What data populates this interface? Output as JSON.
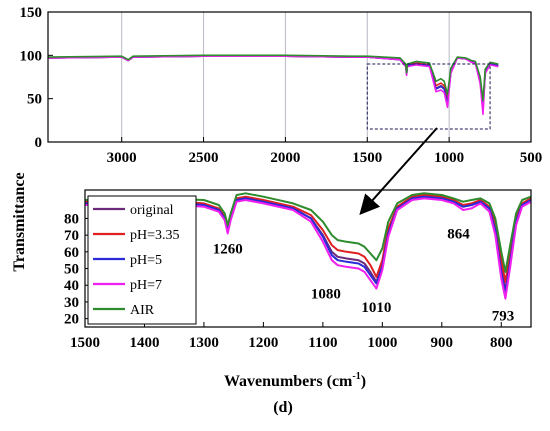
{
  "colors": {
    "original": "#6b2a7a",
    "ph335": "#e02020",
    "ph5": "#2a2ad8",
    "ph7": "#f01ff0",
    "air": "#2e8b2e",
    "zoom_box": "#1a1a55"
  },
  "shared_ylabel": "Transmittance",
  "panel_label": "(d)",
  "chart_data": [
    {
      "type": "line",
      "name_role": "full-spectrum",
      "xlim": [
        3450,
        500
      ],
      "ylim": [
        0,
        150
      ],
      "x_ticks": [
        3000,
        2500,
        2000,
        1500,
        1000,
        500
      ],
      "x_tick_labels": [
        "3000",
        "2500",
        "2000",
        "1500",
        "1000",
        "500"
      ],
      "y_ticks": [
        0,
        50,
        100,
        150
      ],
      "y_tick_labels": [
        "0",
        "50",
        "100",
        "150"
      ],
      "grid": "vertical",
      "zoom_box": {
        "x": [
          1500,
          750
        ],
        "y": [
          15,
          90
        ]
      },
      "series": [
        {
          "name": "original",
          "x": [
            3450,
            3000,
            2960,
            2930,
            2500,
            2000,
            1600,
            1500,
            1300,
            1265,
            1260,
            1255,
            1200,
            1120,
            1080,
            1050,
            1030,
            1010,
            990,
            950,
            900,
            864,
            840,
            810,
            793,
            780,
            750,
            700
          ],
          "y": [
            97,
            98,
            94,
            98,
            99,
            99,
            98,
            98,
            95,
            88,
            78,
            88,
            90,
            88,
            62,
            65,
            62,
            45,
            80,
            97,
            96,
            93,
            92,
            70,
            38,
            80,
            90,
            88
          ]
        },
        {
          "name": "pH=3.35",
          "x": [
            3450,
            3000,
            2960,
            2930,
            2500,
            2000,
            1600,
            1500,
            1300,
            1265,
            1260,
            1255,
            1200,
            1120,
            1080,
            1050,
            1030,
            1010,
            990,
            950,
            900,
            864,
            840,
            810,
            793,
            780,
            750,
            700
          ],
          "y": [
            97,
            98,
            94,
            98,
            99,
            99,
            98,
            98,
            96,
            89,
            79,
            89,
            91,
            89,
            65,
            68,
            65,
            48,
            82,
            97,
            96,
            93,
            92,
            72,
            42,
            82,
            91,
            89
          ]
        },
        {
          "name": "pH=5",
          "x": [
            3450,
            3000,
            2960,
            2930,
            2500,
            2000,
            1600,
            1500,
            1300,
            1265,
            1260,
            1255,
            1200,
            1120,
            1080,
            1050,
            1030,
            1010,
            990,
            950,
            900,
            864,
            840,
            810,
            793,
            780,
            750,
            700
          ],
          "y": [
            97,
            98,
            94,
            98,
            99,
            99,
            98,
            98,
            95,
            88,
            78,
            88,
            90,
            88,
            61,
            64,
            61,
            44,
            80,
            97,
            96,
            93,
            92,
            70,
            37,
            80,
            90,
            88
          ]
        },
        {
          "name": "pH=7",
          "x": [
            3450,
            3000,
            2960,
            2930,
            2500,
            2000,
            1600,
            1500,
            1300,
            1265,
            1260,
            1255,
            1200,
            1120,
            1080,
            1050,
            1030,
            1010,
            990,
            950,
            900,
            864,
            840,
            810,
            793,
            780,
            750,
            700
          ],
          "y": [
            97,
            98,
            94,
            98,
            99,
            99,
            98,
            98,
            95,
            87,
            77,
            87,
            89,
            87,
            58,
            60,
            57,
            40,
            79,
            97,
            96,
            92,
            91,
            67,
            32,
            79,
            89,
            87
          ]
        },
        {
          "name": "AIR",
          "x": [
            3450,
            3000,
            2960,
            2930,
            2500,
            2000,
            1600,
            1500,
            1300,
            1265,
            1260,
            1255,
            1200,
            1120,
            1080,
            1050,
            1030,
            1010,
            990,
            950,
            900,
            864,
            840,
            810,
            793,
            780,
            750,
            700
          ],
          "y": [
            98,
            99,
            95,
            99,
            100,
            100,
            99,
            99,
            97,
            90,
            80,
            90,
            93,
            91,
            70,
            73,
            70,
            55,
            85,
            98,
            97,
            94,
            93,
            75,
            48,
            84,
            92,
            90
          ]
        }
      ]
    },
    {
      "type": "line",
      "name_role": "zoomed-region",
      "xlabel": "Wavenumbers (cm",
      "xlabel_sup": "-1",
      "xlabel_close": ")",
      "xlim": [
        1500,
        750
      ],
      "ylim": [
        15,
        97
      ],
      "x_ticks": [
        1500,
        1400,
        1300,
        1200,
        1100,
        1000,
        900,
        800
      ],
      "x_tick_labels": [
        "1500",
        "1400",
        "1300",
        "1200",
        "1100",
        "1000",
        "900",
        "800"
      ],
      "y_ticks": [
        20,
        30,
        40,
        50,
        60,
        70,
        80
      ],
      "y_tick_labels": [
        "20",
        "30",
        "40",
        "50",
        "60",
        "70",
        "80"
      ],
      "legend_position": "top-left",
      "annotations": [
        {
          "text": "1260",
          "x": 1260,
          "y": 62
        },
        {
          "text": "1080",
          "x": 1095,
          "y": 35
        },
        {
          "text": "1010",
          "x": 1010,
          "y": 27
        },
        {
          "text": "864",
          "x": 872,
          "y": 71
        },
        {
          "text": "793",
          "x": 797,
          "y": 22
        }
      ],
      "series": [
        {
          "name": "original",
          "color_key": "original",
          "x": [
            1500,
            1400,
            1395,
            1390,
            1380,
            1300,
            1275,
            1265,
            1260,
            1255,
            1245,
            1230,
            1200,
            1150,
            1120,
            1100,
            1085,
            1075,
            1060,
            1040,
            1030,
            1020,
            1010,
            1000,
            990,
            975,
            950,
            930,
            900,
            880,
            864,
            850,
            835,
            820,
            810,
            800,
            793,
            785,
            775,
            765,
            750
          ],
          "y": [
            89,
            90,
            90,
            89,
            90,
            88,
            85,
            80,
            73,
            80,
            91,
            92,
            90,
            86,
            80,
            70,
            60,
            57,
            56,
            55,
            53,
            48,
            42,
            52,
            72,
            86,
            92,
            93,
            92,
            90,
            87,
            88,
            90,
            86,
            74,
            50,
            37,
            55,
            78,
            88,
            91
          ]
        },
        {
          "name": "pH=3.35",
          "color_key": "ph335",
          "x": [
            1500,
            1400,
            1395,
            1390,
            1380,
            1300,
            1275,
            1265,
            1260,
            1255,
            1245,
            1230,
            1200,
            1150,
            1120,
            1100,
            1085,
            1075,
            1060,
            1040,
            1030,
            1020,
            1010,
            1000,
            990,
            975,
            950,
            930,
            900,
            880,
            864,
            850,
            835,
            820,
            810,
            800,
            793,
            785,
            775,
            765,
            750
          ],
          "y": [
            90,
            91,
            91,
            90,
            91,
            89,
            86,
            81,
            74,
            81,
            92,
            93,
            91,
            87,
            82,
            73,
            64,
            61,
            60,
            59,
            57,
            52,
            45,
            55,
            74,
            87,
            93,
            94,
            93,
            91,
            88,
            89,
            91,
            87,
            77,
            55,
            42,
            59,
            80,
            89,
            92
          ]
        },
        {
          "name": "pH=5",
          "color_key": "ph5",
          "x": [
            1500,
            1400,
            1395,
            1390,
            1380,
            1300,
            1275,
            1265,
            1260,
            1255,
            1245,
            1230,
            1200,
            1150,
            1120,
            1100,
            1085,
            1075,
            1060,
            1040,
            1030,
            1020,
            1010,
            1000,
            990,
            975,
            950,
            930,
            900,
            880,
            864,
            850,
            835,
            820,
            810,
            800,
            793,
            785,
            775,
            765,
            750
          ],
          "y": [
            89,
            90,
            90,
            89,
            90,
            88,
            85,
            80,
            73,
            80,
            91,
            92,
            90,
            86,
            80,
            69,
            58,
            55,
            54,
            53,
            51,
            46,
            41,
            51,
            71,
            86,
            92,
            93,
            92,
            90,
            87,
            88,
            90,
            86,
            73,
            48,
            35,
            54,
            78,
            88,
            91
          ]
        },
        {
          "name": "pH=7",
          "color_key": "ph7",
          "x": [
            1500,
            1400,
            1395,
            1390,
            1380,
            1300,
            1275,
            1265,
            1260,
            1255,
            1245,
            1230,
            1200,
            1150,
            1120,
            1100,
            1085,
            1075,
            1060,
            1040,
            1030,
            1020,
            1010,
            1000,
            990,
            975,
            950,
            930,
            900,
            880,
            864,
            850,
            835,
            820,
            810,
            800,
            793,
            785,
            775,
            765,
            750
          ],
          "y": [
            88,
            89,
            89,
            88,
            89,
            87,
            84,
            79,
            71,
            79,
            90,
            91,
            89,
            85,
            78,
            66,
            55,
            52,
            51,
            50,
            48,
            43,
            38,
            49,
            69,
            85,
            91,
            92,
            91,
            89,
            85,
            86,
            89,
            84,
            70,
            44,
            32,
            51,
            76,
            87,
            90
          ]
        },
        {
          "name": "AIR",
          "color_key": "air",
          "x": [
            1500,
            1400,
            1395,
            1390,
            1380,
            1300,
            1275,
            1265,
            1260,
            1255,
            1245,
            1230,
            1200,
            1150,
            1120,
            1100,
            1085,
            1075,
            1060,
            1040,
            1030,
            1020,
            1010,
            1000,
            990,
            975,
            950,
            930,
            900,
            880,
            864,
            850,
            835,
            820,
            810,
            800,
            793,
            785,
            775,
            765,
            750
          ],
          "y": [
            91,
            92,
            92,
            91,
            92,
            91,
            88,
            83,
            76,
            83,
            94,
            95,
            93,
            89,
            85,
            78,
            70,
            67,
            66,
            65,
            63,
            59,
            55,
            62,
            78,
            89,
            94,
            95,
            94,
            92,
            90,
            91,
            92,
            89,
            80,
            60,
            48,
            64,
            83,
            91,
            93
          ]
        }
      ]
    }
  ]
}
